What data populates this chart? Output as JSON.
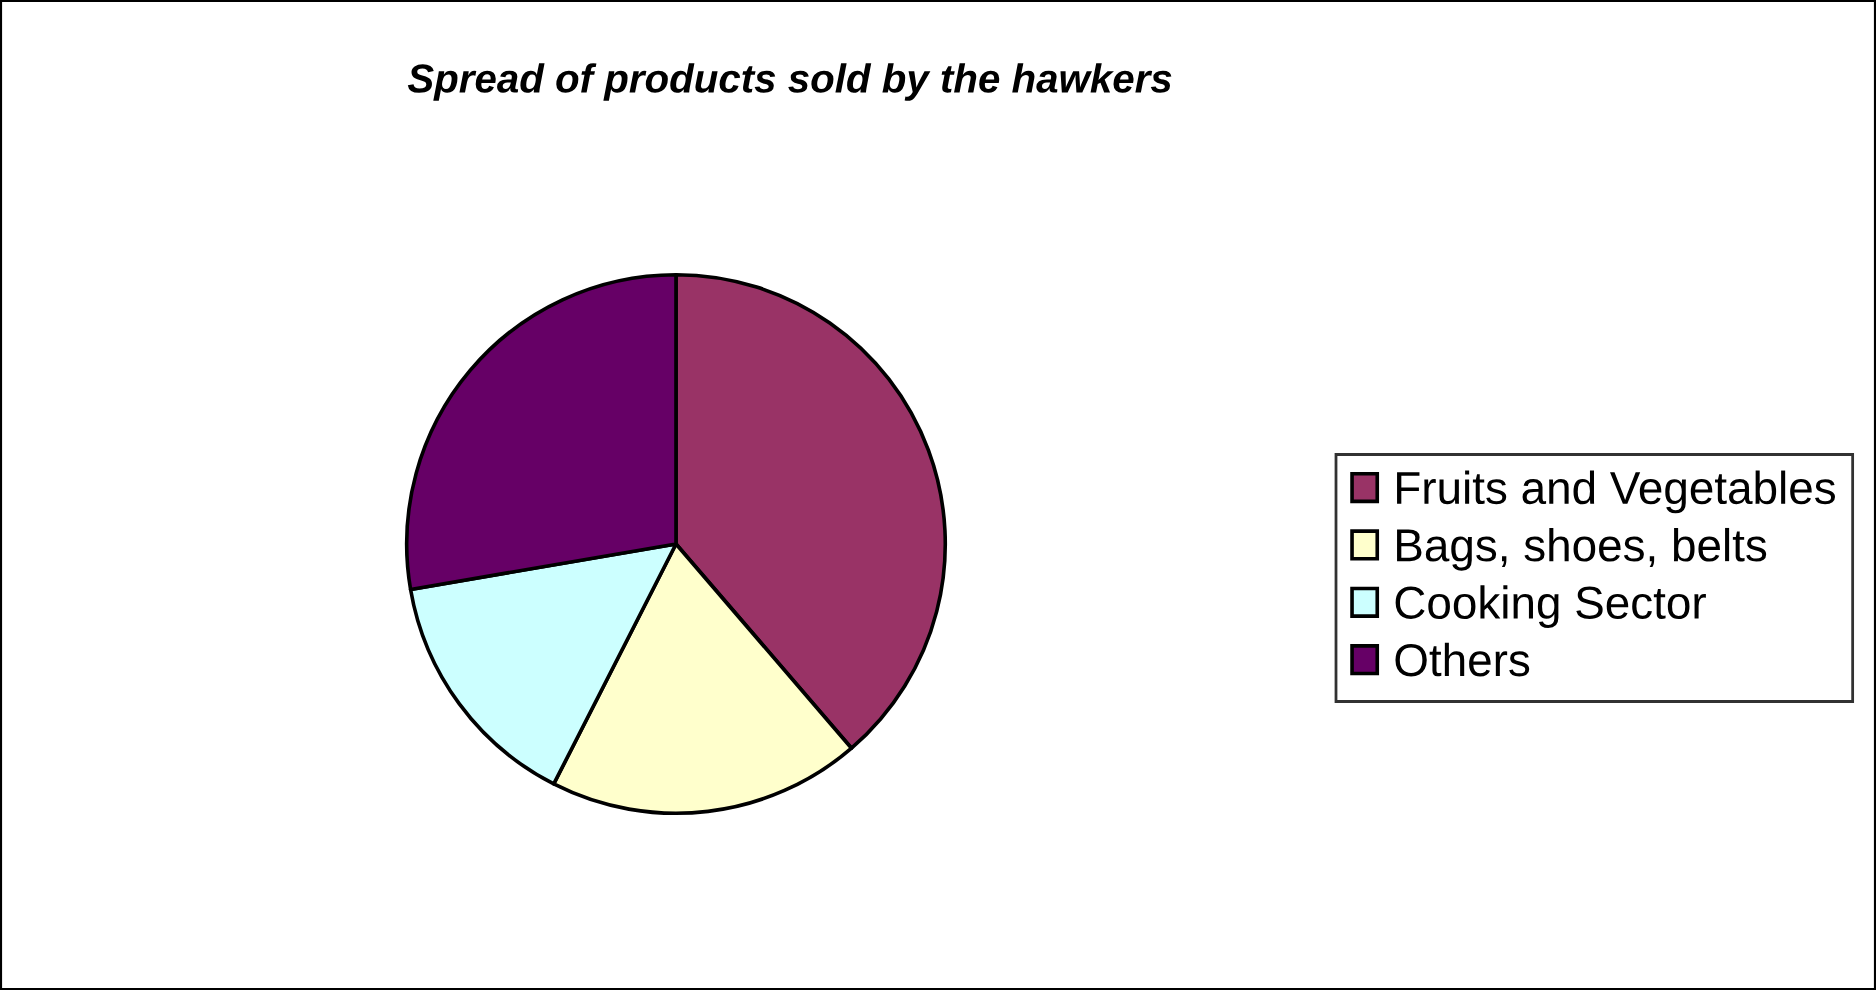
{
  "chart_data": {
    "type": "pie",
    "title": "Spread of products sold by the hawkers",
    "categories": [
      "Fruits and Vegetables",
      "Bags, shoes, belts",
      "Cooking Sector",
      "Others"
    ],
    "values": [
      38.7,
      18.8,
      14.8,
      27.7
    ],
    "colors": [
      "#993366",
      "#ffffcc",
      "#ccffff",
      "#660066"
    ],
    "legend": "right"
  }
}
